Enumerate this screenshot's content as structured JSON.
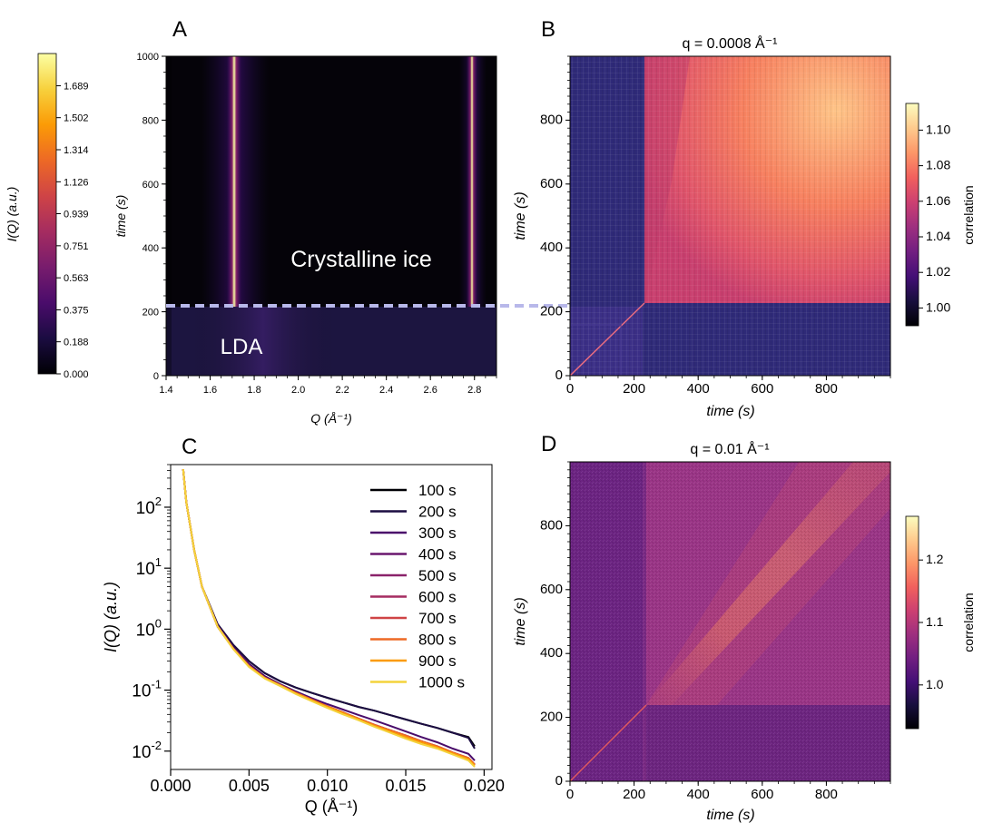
{
  "colors": {
    "inferno": [
      "#000004",
      "#1b0c41",
      "#4a0c6b",
      "#781c6d",
      "#a52c60",
      "#cf4446",
      "#ed6925",
      "#fb9b06",
      "#f7d13d",
      "#fcffa4"
    ],
    "magma": [
      "#000004",
      "#180f3d",
      "#440f76",
      "#721f81",
      "#9e2f7f",
      "#cd4071",
      "#f1605d",
      "#fd9668",
      "#feca8d",
      "#fcfdbf"
    ],
    "dashed_line": "#b8b8ea",
    "lda_band": "#1c1540",
    "crystalline_bg": "#050309"
  },
  "panels": {
    "A": {
      "letter": "A"
    },
    "B": {
      "letter": "B"
    },
    "C": {
      "letter": "C"
    },
    "D": {
      "letter": "D"
    }
  },
  "chart_data": [
    {
      "panel": "A",
      "type": "heatmap",
      "xlabel": "Q (Å⁻¹)",
      "ylabel": "time (s)",
      "xlim": [
        1.4,
        2.9
      ],
      "ylim": [
        0,
        1000
      ],
      "xticks": [
        "1.4",
        "1.6",
        "1.8",
        "2.0",
        "2.2",
        "2.4",
        "2.6",
        "2.8"
      ],
      "yticks": [
        "0",
        "200",
        "400",
        "600",
        "800",
        "1000"
      ],
      "annotations": [
        "Crystalline ice",
        "LDA"
      ],
      "transition_time": 220,
      "peaks": [
        {
          "q": 1.71,
          "from_time": 220
        },
        {
          "q": 2.79,
          "from_time": 220
        }
      ],
      "colorbar": {
        "label": "I(Q) (a.u.)",
        "ticks": [
          "0.000",
          "0.188",
          "0.375",
          "0.563",
          "0.751",
          "0.939",
          "1.126",
          "1.314",
          "1.502",
          "1.689"
        ],
        "range": [
          0,
          1.878
        ],
        "colormap": "inferno"
      }
    },
    {
      "panel": "B",
      "type": "heatmap",
      "title": "q = 0.0008 Å⁻¹",
      "xlabel": "time (s)",
      "ylabel": "time (s)",
      "xlim": [
        0,
        1000
      ],
      "ylim": [
        0,
        1000
      ],
      "xticks": [
        "0",
        "200",
        "400",
        "600",
        "800"
      ],
      "yticks": [
        "0",
        "200",
        "400",
        "600",
        "800"
      ],
      "transition_time": 235,
      "colorbar": {
        "label": "correlation",
        "ticks": [
          "1.00",
          "1.02",
          "1.04",
          "1.06",
          "1.08",
          "1.10"
        ],
        "range": [
          0.99,
          1.115
        ],
        "colormap": "magma"
      }
    },
    {
      "panel": "C",
      "type": "line",
      "xlabel": "Q (Å⁻¹)",
      "ylabel": "I(Q) (a.u.)",
      "xlim": [
        0.0,
        0.0205
      ],
      "ylim": [
        0.005,
        500
      ],
      "yscale": "log",
      "xticks": [
        "0.000",
        "0.005",
        "0.010",
        "0.015",
        "0.020"
      ],
      "yticks": [
        {
          "base": "10",
          "exp": "-2"
        },
        {
          "base": "10",
          "exp": "-1"
        },
        {
          "base": "10",
          "exp": "0"
        },
        {
          "base": "10",
          "exp": "1"
        },
        {
          "base": "10",
          "exp": "2"
        }
      ],
      "legend_position": "top-right",
      "x": [
        0.0008,
        0.001,
        0.0015,
        0.002,
        0.003,
        0.004,
        0.005,
        0.006,
        0.007,
        0.008,
        0.009,
        0.01,
        0.011,
        0.012,
        0.013,
        0.014,
        0.015,
        0.016,
        0.017,
        0.018,
        0.019,
        0.0194
      ],
      "series": [
        {
          "name": "100 s",
          "color": "#000004",
          "values": [
            420,
            120,
            20,
            5,
            1.2,
            0.55,
            0.3,
            0.19,
            0.14,
            0.11,
            0.09,
            0.075,
            0.063,
            0.053,
            0.046,
            0.039,
            0.033,
            0.028,
            0.024,
            0.02,
            0.017,
            0.012
          ]
        },
        {
          "name": "200 s",
          "color": "#1b0c41",
          "values": [
            420,
            120,
            20,
            5,
            1.2,
            0.55,
            0.3,
            0.19,
            0.14,
            0.11,
            0.09,
            0.075,
            0.063,
            0.053,
            0.046,
            0.039,
            0.033,
            0.028,
            0.024,
            0.02,
            0.0165,
            0.011
          ]
        },
        {
          "name": "300 s",
          "color": "#4a0c6b",
          "values": [
            420,
            120,
            20,
            5,
            1.15,
            0.5,
            0.27,
            0.17,
            0.125,
            0.095,
            0.074,
            0.059,
            0.048,
            0.039,
            0.032,
            0.026,
            0.021,
            0.017,
            0.014,
            0.011,
            0.009,
            0.007
          ]
        },
        {
          "name": "400 s",
          "color": "#6a176e",
          "values": [
            420,
            120,
            20,
            5,
            1.1,
            0.48,
            0.25,
            0.16,
            0.12,
            0.09,
            0.07,
            0.054,
            0.043,
            0.034,
            0.027,
            0.022,
            0.018,
            0.0145,
            0.012,
            0.0095,
            0.0077,
            0.006
          ]
        },
        {
          "name": "500 s",
          "color": "#8a226a",
          "values": [
            420,
            120,
            20,
            5,
            1.1,
            0.48,
            0.25,
            0.16,
            0.12,
            0.09,
            0.07,
            0.054,
            0.043,
            0.034,
            0.027,
            0.022,
            0.018,
            0.0145,
            0.012,
            0.0095,
            0.0077,
            0.006
          ]
        },
        {
          "name": "600 s",
          "color": "#a52c60",
          "values": [
            420,
            120,
            20,
            5,
            1.1,
            0.48,
            0.25,
            0.16,
            0.12,
            0.09,
            0.07,
            0.054,
            0.043,
            0.034,
            0.027,
            0.022,
            0.018,
            0.0145,
            0.012,
            0.0095,
            0.0077,
            0.006
          ]
        },
        {
          "name": "700 s",
          "color": "#cf4446",
          "values": [
            420,
            120,
            20,
            5,
            1.1,
            0.48,
            0.25,
            0.16,
            0.12,
            0.09,
            0.07,
            0.054,
            0.043,
            0.034,
            0.027,
            0.022,
            0.018,
            0.0145,
            0.012,
            0.0095,
            0.0077,
            0.006
          ]
        },
        {
          "name": "800 s",
          "color": "#ed6925",
          "values": [
            420,
            120,
            20,
            5,
            1.1,
            0.48,
            0.25,
            0.16,
            0.12,
            0.09,
            0.07,
            0.054,
            0.043,
            0.034,
            0.027,
            0.022,
            0.018,
            0.0145,
            0.012,
            0.0095,
            0.0077,
            0.006
          ]
        },
        {
          "name": "900 s",
          "color": "#fb9b06",
          "values": [
            420,
            120,
            20,
            5,
            1.1,
            0.47,
            0.245,
            0.157,
            0.118,
            0.088,
            0.068,
            0.053,
            0.042,
            0.033,
            0.026,
            0.021,
            0.017,
            0.014,
            0.0115,
            0.0092,
            0.0074,
            0.0058
          ]
        },
        {
          "name": "1000 s",
          "color": "#f4d33c",
          "values": [
            420,
            120,
            20,
            5,
            1.1,
            0.47,
            0.24,
            0.155,
            0.116,
            0.086,
            0.066,
            0.051,
            0.04,
            0.032,
            0.025,
            0.02,
            0.016,
            0.013,
            0.011,
            0.0088,
            0.007,
            0.0055
          ]
        }
      ]
    },
    {
      "panel": "D",
      "type": "heatmap",
      "title": "q = 0.01 Å⁻¹",
      "xlabel": "time (s)",
      "ylabel": "time (s)",
      "xlim": [
        0,
        1000
      ],
      "ylim": [
        0,
        1000
      ],
      "xticks": [
        "0",
        "200",
        "400",
        "600",
        "800"
      ],
      "yticks": [
        "0",
        "200",
        "400",
        "600",
        "800"
      ],
      "transition_time": 240,
      "colorbar": {
        "label": "correlation",
        "ticks": [
          "1.0",
          "1.1",
          "1.2"
        ],
        "range": [
          0.93,
          1.27
        ],
        "colormap": "magma"
      }
    }
  ]
}
